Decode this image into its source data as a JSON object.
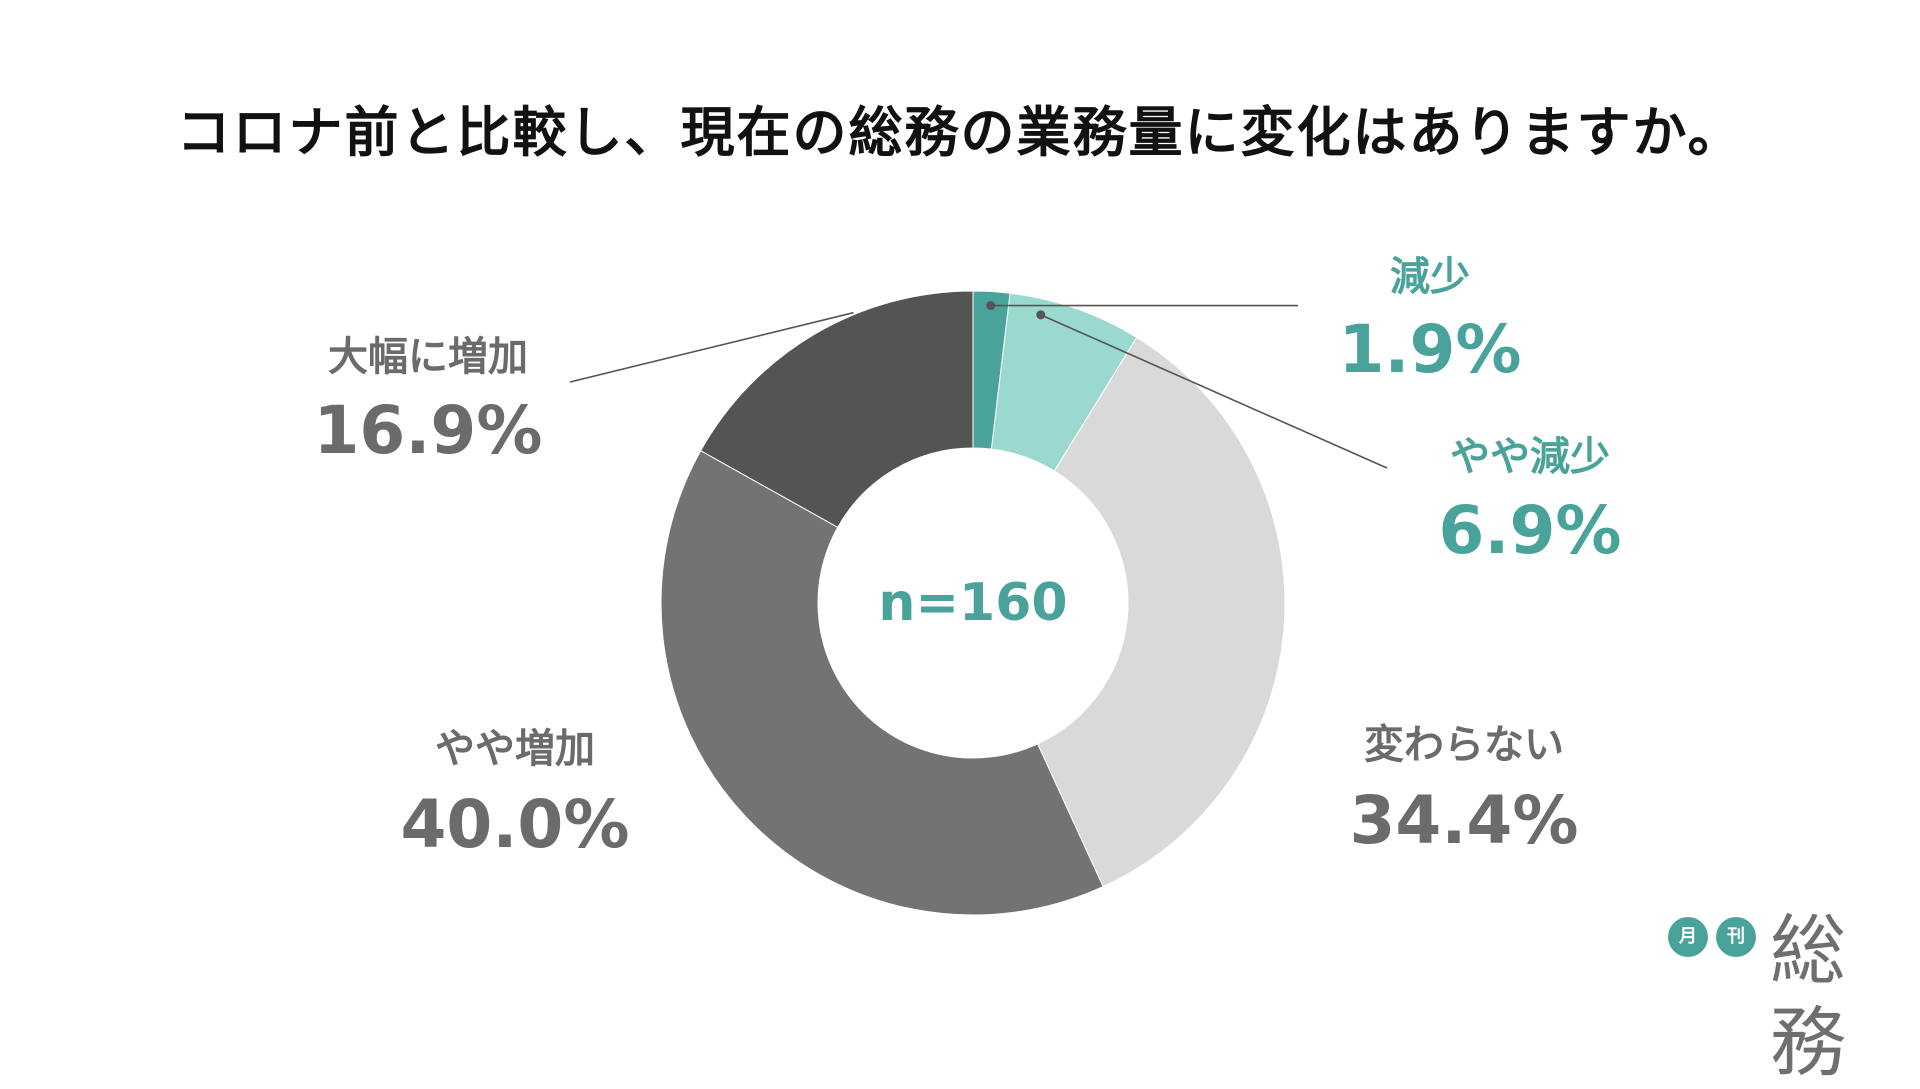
{
  "colors": {
    "title": "#111111",
    "accent_dark": "#4aa39a",
    "accent_light": "#9bd8cf",
    "neutral_light": "#d9d9d9",
    "neutral_mid": "#737373",
    "neutral_dark": "#545454",
    "label_gray": "#6b6b6b",
    "leader_line": "#555555"
  },
  "chart_data": {
    "type": "pie",
    "donut": true,
    "title": "コロナ前と比較し、現在の総務の業務量に変化はありますか。",
    "center_label": "n=160",
    "unit": "%",
    "slices": [
      {
        "name": "減少",
        "value": 1.9,
        "value_label": "1.9%",
        "color": "#4aa39a",
        "label_color": "#4aa39a"
      },
      {
        "name": "やや減少",
        "value": 6.9,
        "value_label": "6.9%",
        "color": "#9bd8cf",
        "label_color": "#4aa39a"
      },
      {
        "name": "変わらない",
        "value": 34.4,
        "value_label": "34.4%",
        "color": "#d9d9d9",
        "label_color": "#6b6b6b"
      },
      {
        "name": "やや増加",
        "value": 40.0,
        "value_label": "40.0%",
        "color": "#737373",
        "label_color": "#6b6b6b"
      },
      {
        "name": "大幅に増加",
        "value": 16.9,
        "value_label": "16.9%",
        "color": "#545454",
        "label_color": "#6b6b6b"
      }
    ],
    "start_angle_deg": 0,
    "direction": "clockwise"
  },
  "brand": {
    "badge1": "月",
    "badge2": "刊",
    "name": "総務"
  }
}
